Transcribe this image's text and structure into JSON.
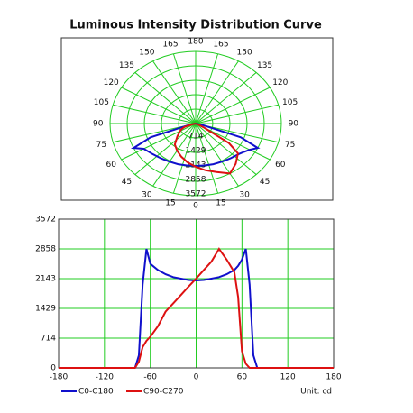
{
  "title": "Luminous Intensity Distribution Curve",
  "chart_data": [
    {
      "type": "polar",
      "rlim": [
        0,
        3572
      ],
      "rticks": [
        714,
        1429,
        2143,
        2858,
        3572
      ],
      "thetaticks": [
        0,
        15,
        30,
        45,
        60,
        75,
        90,
        105,
        120,
        135,
        150,
        165,
        180
      ],
      "grid": true,
      "grid_color": "#22cc22",
      "x": [
        -180,
        -90,
        -80,
        -75,
        -70,
        -65,
        -60,
        -50,
        -40,
        -30,
        -20,
        -10,
        0,
        10,
        20,
        30,
        40,
        50,
        55,
        60,
        65,
        70,
        75,
        80,
        90,
        180
      ],
      "series": [
        {
          "name": "C0-C180",
          "color": "#1010cc",
          "values": [
            0,
            0,
            0,
            300,
            2000,
            2858,
            2500,
            2350,
            2250,
            2180,
            2143,
            2110,
            2100,
            2110,
            2143,
            2180,
            2250,
            2350,
            2450,
            2600,
            2858,
            2000,
            300,
            0,
            0,
            0
          ]
        },
        {
          "name": "C90-C270",
          "color": "#dd1111",
          "values": [
            0,
            0,
            0,
            150,
            500,
            650,
            750,
            1000,
            1350,
            1550,
            1750,
            1950,
            2143,
            2350,
            2550,
            2858,
            2600,
            2300,
            1700,
            400,
            100,
            0,
            0,
            0,
            0,
            0
          ]
        }
      ]
    },
    {
      "type": "line",
      "xlim": [
        -180,
        180
      ],
      "xticks": [
        -180,
        -120,
        -60,
        0,
        60,
        120,
        180
      ],
      "ylim": [
        0,
        3572
      ],
      "yticks": [
        0,
        714,
        1429,
        2143,
        2858,
        3572
      ],
      "grid": true,
      "grid_color": "#22cc22",
      "legend": "bottom-left",
      "unit": "Unit: cd",
      "x": [
        -180,
        -90,
        -80,
        -75,
        -70,
        -65,
        -60,
        -50,
        -40,
        -30,
        -20,
        -10,
        0,
        10,
        20,
        30,
        40,
        50,
        55,
        60,
        65,
        70,
        75,
        80,
        90,
        180
      ],
      "series": [
        {
          "name": "C0-C180",
          "color": "#1010cc",
          "values": [
            0,
            0,
            0,
            300,
            2000,
            2858,
            2500,
            2350,
            2250,
            2180,
            2143,
            2110,
            2100,
            2110,
            2143,
            2180,
            2250,
            2350,
            2450,
            2600,
            2858,
            2000,
            300,
            0,
            0,
            0
          ]
        },
        {
          "name": "C90-C270",
          "color": "#dd1111",
          "values": [
            0,
            0,
            0,
            150,
            500,
            650,
            750,
            1000,
            1350,
            1550,
            1750,
            1950,
            2143,
            2350,
            2550,
            2858,
            2600,
            2300,
            1700,
            400,
            100,
            0,
            0,
            0,
            0,
            0
          ]
        }
      ]
    }
  ]
}
